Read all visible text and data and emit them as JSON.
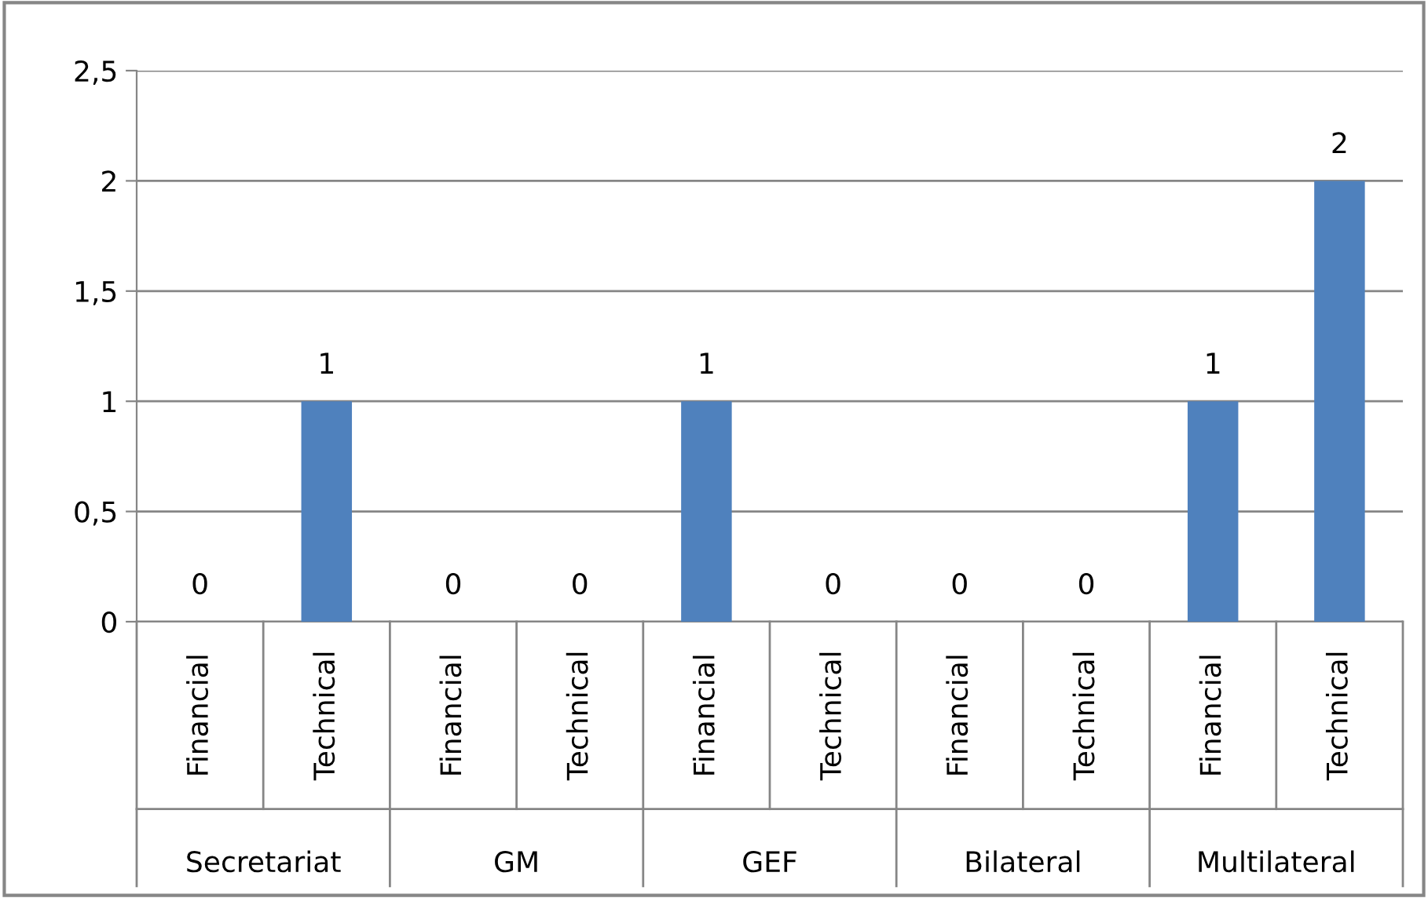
{
  "chart_data": {
    "type": "bar",
    "categories": [
      "Financial",
      "Technical",
      "Financial",
      "Technical",
      "Financial",
      "Technical",
      "Financial",
      "Technical",
      "Financial",
      "Technical"
    ],
    "values": [
      0,
      1,
      0,
      0,
      1,
      0,
      0,
      0,
      1,
      2
    ],
    "color": "#4f81bd",
    "annotations": [
      "Secretariat",
      "GM",
      "GEF",
      "Bilateral",
      "Multilateral"
    ],
    "ylim": [
      0,
      2.5
    ],
    "yticks": [
      0,
      {
        "value": 0.5,
        "label": "0,5"
      },
      1,
      {
        "value": 1.5,
        "label": "1,5"
      },
      2,
      {
        "value": 2.5,
        "label": "2,5"
      }
    ],
    "grid": "y",
    "data_labels": true
  }
}
